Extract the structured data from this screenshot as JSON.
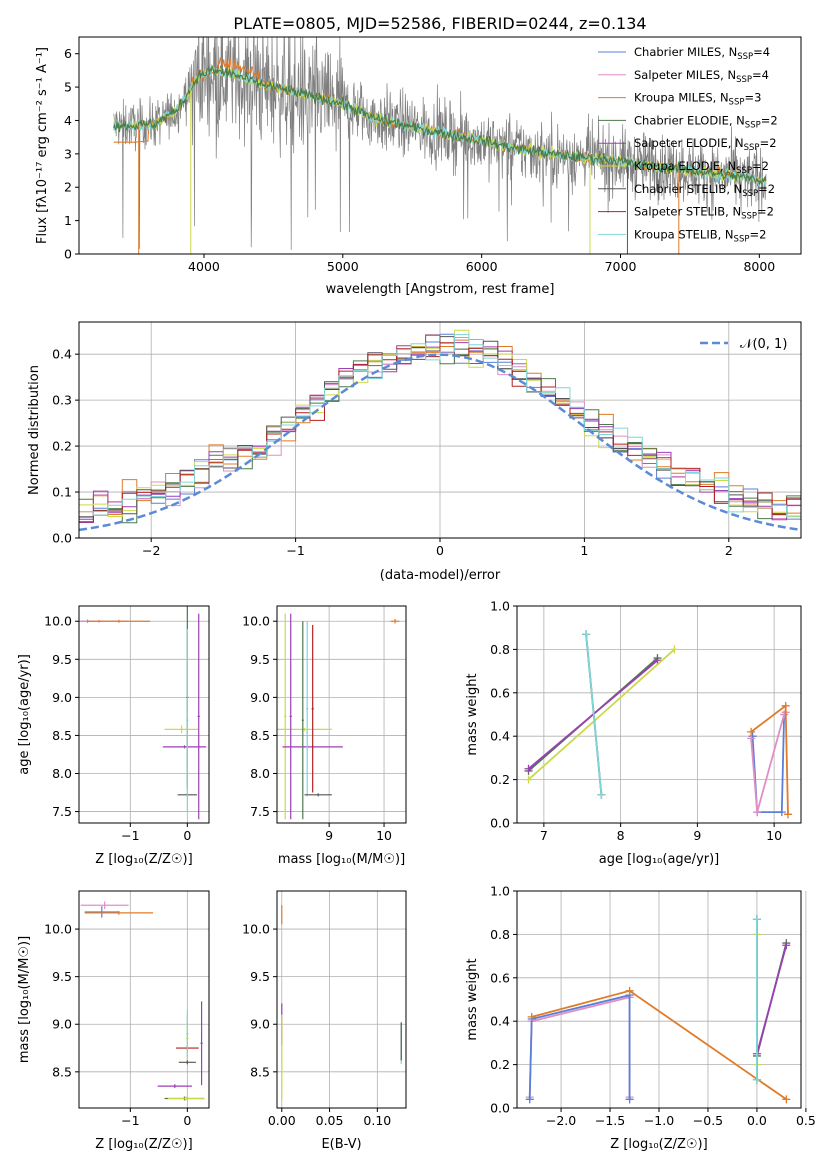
{
  "figure": {
    "title": "PLATE=0805, MJD=52586, FIBERID=0244, z=0.134"
  },
  "colors": {
    "Chabrier MILES": "#5b7fd6",
    "Salpeter MILES": "#e08fc6",
    "Kroupa MILES": "#e07b28",
    "Chabrier ELODIE": "#4c7a4c",
    "Salpeter ELODIE": "#9b3fb5",
    "Kroupa ELODIE": "#ccd94a",
    "Chabrier STELIB": "#555555",
    "Salpeter STELIB": "#b22222",
    "Kroupa STELIB": "#7fd6d6",
    "data": "#7f7f7f",
    "normal": "#5b8bd6"
  },
  "chart_data": [
    {
      "id": "spectrum",
      "type": "line",
      "xlabel": "wavelength [Angstrom, rest frame]",
      "ylabel": "Flux [fλ10⁻¹⁷ erg cm⁻² s⁻¹ A⁻¹]",
      "xlim": [
        3100,
        8300
      ],
      "ylim": [
        0,
        6.5
      ],
      "xticks": [
        4000,
        5000,
        6000,
        7000,
        8000
      ],
      "yticks": [
        0,
        1,
        2,
        3,
        4,
        5,
        6
      ],
      "legend": "top-right",
      "legend_entries": [
        {
          "name": "Chabrier MILES, N",
          "sub": "SSP",
          "tail": "=4",
          "color": "#5b7fd6"
        },
        {
          "name": "Salpeter MILES, N",
          "sub": "SSP",
          "tail": "=4",
          "color": "#e08fc6"
        },
        {
          "name": "Kroupa MILES, N",
          "sub": "SSP",
          "tail": "=3",
          "color": "#e07b28"
        },
        {
          "name": "Chabrier ELODIE, N",
          "sub": "SSP",
          "tail": "=2",
          "color": "#4c7a4c"
        },
        {
          "name": "Salpeter ELODIE, N",
          "sub": "SSP",
          "tail": "=2",
          "color": "#9b3fb5"
        },
        {
          "name": "Kroupa ELODIE, N",
          "sub": "SSP",
          "tail": "=2",
          "color": "#ccd94a"
        },
        {
          "name": "Chabrier STELIB, N",
          "sub": "SSP",
          "tail": "=2",
          "color": "#555555"
        },
        {
          "name": "Salpeter STELIB, N",
          "sub": "SSP",
          "tail": "=2",
          "color": "#b22222"
        },
        {
          "name": "Kroupa STELIB, N",
          "sub": "SSP",
          "tail": "=2",
          "color": "#7fd6d6"
        }
      ],
      "continuum": {
        "x": [
          3350,
          3500,
          3650,
          3800,
          3900,
          3950,
          4050,
          4200,
          4400,
          4600,
          4800,
          5000,
          5200,
          5500,
          5800,
          6000,
          6200,
          6500,
          6700,
          6900,
          7100,
          7400,
          7700,
          8050
        ],
        "y": [
          3.85,
          3.85,
          3.9,
          4.3,
          4.9,
          5.3,
          5.5,
          5.4,
          5.1,
          4.9,
          4.7,
          4.5,
          4.1,
          3.8,
          3.55,
          3.4,
          3.2,
          3.0,
          2.9,
          2.85,
          2.7,
          2.55,
          2.4,
          2.2
        ]
      }
    },
    {
      "id": "residuals",
      "type": "histogram",
      "xlabel": "(data-model)/error",
      "ylabel": "Normed distribution",
      "xlim": [
        -2.5,
        2.5
      ],
      "ylim": [
        0,
        0.47
      ],
      "xticks": [
        -2,
        -1,
        0,
        1,
        2
      ],
      "yticks": [
        0.0,
        0.1,
        0.2,
        0.3,
        0.4
      ],
      "grid": true,
      "legend": "top-right",
      "normal_label": "𝒩(0, 1)",
      "bin_width": 0.1
    },
    {
      "id": "age_vs_Z",
      "type": "scatter",
      "xlabel": "Z [log₁₀(Z/Z☉)]",
      "ylabel": "age  [log₁₀(age/yr)]",
      "xlim": [
        -1.9,
        0.38
      ],
      "ylim": [
        7.35,
        10.2
      ],
      "xticks": [
        -1,
        0
      ],
      "yticks": [
        7.5,
        8.0,
        8.5,
        9.0,
        9.5,
        10.0
      ],
      "grid": true,
      "points": [
        {
          "x": -1.75,
          "y": 10.0,
          "xerr": 0.12,
          "yerr": 0.02,
          "series": "Chabrier MILES"
        },
        {
          "x": -1.55,
          "y": 10.0,
          "xerr": 0.5,
          "yerr": 0.02,
          "series": "Salpeter MILES"
        },
        {
          "x": -1.2,
          "y": 10.0,
          "xerr": 0.55,
          "yerr": 0.02,
          "series": "Kroupa MILES"
        },
        {
          "x": 0.0,
          "y": 9.0,
          "xerr": 0.02,
          "yerr": 1.2,
          "series": "Chabrier ELODIE"
        },
        {
          "x": -0.1,
          "y": 8.58,
          "xerr": 0.3,
          "yerr": 0.05,
          "series": "Kroupa ELODIE"
        },
        {
          "x": 0.2,
          "y": 8.75,
          "xerr": 0.02,
          "yerr": 1.35,
          "series": "Salpeter ELODIE"
        },
        {
          "x": -0.05,
          "y": 8.35,
          "xerr": 0.38,
          "yerr": 0.02,
          "series": "Salpeter ELODIE"
        },
        {
          "x": 0.0,
          "y": 7.72,
          "xerr": 0.17,
          "yerr": 0.02,
          "series": "Chabrier STELIB"
        },
        {
          "x": 0.0,
          "y": 8.7,
          "xerr": 0.02,
          "yerr": 1.2,
          "series": "Kroupa STELIB"
        }
      ]
    },
    {
      "id": "age_vs_mass",
      "type": "scatter",
      "xlabel": "mass [log₁₀(M/M☉)]",
      "ylabel": "",
      "xlim": [
        8.05,
        10.4
      ],
      "ylim": [
        7.35,
        10.2
      ],
      "xticks": [
        9,
        10
      ],
      "yticks": [
        7.5,
        8.0,
        8.5,
        9.0,
        9.5,
        10.0
      ],
      "grid": true,
      "points": [
        {
          "x": 10.2,
          "y": 10.0,
          "xerr": 0.08,
          "yerr": 0.03,
          "series": "Kroupa MILES"
        },
        {
          "x": 8.55,
          "y": 8.58,
          "xerr": 0.5,
          "yerr": 0.02,
          "series": "Kroupa ELODIE"
        },
        {
          "x": 8.2,
          "y": 8.75,
          "xerr": 0.02,
          "yerr": 1.35,
          "series": "Kroupa ELODIE"
        },
        {
          "x": 8.3,
          "y": 8.75,
          "xerr": 0.02,
          "yerr": 1.35,
          "series": "Salpeter ELODIE"
        },
        {
          "x": 8.7,
          "y": 8.35,
          "xerr": 0.55,
          "yerr": 0.02,
          "series": "Salpeter ELODIE"
        },
        {
          "x": 8.52,
          "y": 8.7,
          "xerr": 0.02,
          "yerr": 1.3,
          "series": "Chabrier ELODIE"
        },
        {
          "x": 8.7,
          "y": 8.85,
          "xerr": 0.02,
          "yerr": 1.1,
          "series": "Salpeter STELIB"
        },
        {
          "x": 8.6,
          "y": 8.85,
          "xerr": 0.02,
          "yerr": 1.15,
          "series": "Kroupa STELIB"
        },
        {
          "x": 8.8,
          "y": 7.72,
          "xerr": 0.25,
          "yerr": 0.02,
          "series": "Chabrier STELIB"
        }
      ]
    },
    {
      "id": "weight_vs_age",
      "type": "line",
      "xlabel": "age  [log₁₀(age/yr)]",
      "ylabel": "mass weight",
      "xlim": [
        6.65,
        10.35
      ],
      "ylim": [
        0.0,
        1.0
      ],
      "xticks": [
        7,
        8,
        9,
        10
      ],
      "yticks": [
        0.0,
        0.2,
        0.4,
        0.6,
        0.8,
        1.0
      ],
      "grid": true,
      "series": [
        {
          "name": "Chabrier ELODIE",
          "x": [
            6.8,
            8.48
          ],
          "y": [
            0.24,
            0.76
          ]
        },
        {
          "name": "Salpeter ELODIE",
          "x": [
            6.8,
            8.48
          ],
          "y": [
            0.25,
            0.75
          ]
        },
        {
          "name": "Kroupa ELODIE",
          "x": [
            6.8,
            8.7
          ],
          "y": [
            0.2,
            0.8
          ]
        },
        {
          "name": "Chabrier STELIB",
          "x": [
            7.55,
            7.75
          ],
          "y": [
            0.87,
            0.13
          ]
        },
        {
          "name": "Kroupa STELIB",
          "x": [
            7.55,
            7.75
          ],
          "y": [
            0.87,
            0.13
          ]
        },
        {
          "name": "Chabrier MILES",
          "x": [
            9.72,
            9.78,
            10.1,
            10.13
          ],
          "y": [
            0.4,
            0.05,
            0.05,
            0.5
          ]
        },
        {
          "name": "Salpeter MILES",
          "x": [
            9.7,
            9.78,
            10.13,
            10.15
          ],
          "y": [
            0.39,
            0.05,
            0.5,
            0.51
          ]
        },
        {
          "name": "Kroupa MILES",
          "x": [
            9.7,
            10.15,
            10.18
          ],
          "y": [
            0.42,
            0.54,
            0.04
          ]
        }
      ]
    },
    {
      "id": "mass_vs_Z",
      "type": "scatter",
      "xlabel": "Z [log₁₀(Z/Z☉)]",
      "ylabel": "mass [log₁₀(M/M☉)]",
      "xlim": [
        -1.9,
        0.38
      ],
      "ylim": [
        8.12,
        10.4
      ],
      "xticks": [
        -1,
        0
      ],
      "yticks": [
        8.5,
        9.0,
        9.5,
        10.0
      ],
      "grid": true,
      "points": [
        {
          "x": -1.5,
          "y": 10.18,
          "xerr": 0.3,
          "yerr": 0.06,
          "series": "Chabrier MILES"
        },
        {
          "x": -1.45,
          "y": 10.25,
          "xerr": 0.42,
          "yerr": 0.04,
          "series": "Salpeter MILES"
        },
        {
          "x": -1.2,
          "y": 10.17,
          "xerr": 0.6,
          "yerr": 0.02,
          "series": "Kroupa MILES"
        },
        {
          "x": 0.0,
          "y": 8.85,
          "xerr": 0.02,
          "yerr": 0.25,
          "series": "Kroupa ELODIE"
        },
        {
          "x": -0.05,
          "y": 8.22,
          "xerr": 0.35,
          "yerr": 0.02,
          "series": "Chabrier ELODIE"
        },
        {
          "x": -0.02,
          "y": 8.22,
          "xerr": 0.32,
          "yerr": 0.02,
          "series": "Kroupa ELODIE"
        },
        {
          "x": -0.22,
          "y": 8.35,
          "xerr": 0.3,
          "yerr": 0.02,
          "series": "Salpeter ELODIE"
        },
        {
          "x": 0.25,
          "y": 8.8,
          "xerr": 0.02,
          "yerr": 0.44,
          "series": "Salpeter ELODIE"
        },
        {
          "x": 0.0,
          "y": 8.75,
          "xerr": 0.2,
          "yerr": 0.02,
          "series": "Salpeter STELIB"
        },
        {
          "x": 0.0,
          "y": 8.6,
          "xerr": 0.15,
          "yerr": 0.02,
          "series": "Chabrier STELIB"
        },
        {
          "x": 0.0,
          "y": 8.9,
          "xerr": 0.02,
          "yerr": 0.25,
          "series": "Kroupa STELIB"
        }
      ]
    },
    {
      "id": "mass_vs_ebv",
      "type": "scatter",
      "xlabel": "E(B-V)",
      "ylabel": "",
      "xlim": [
        -0.005,
        0.13
      ],
      "ylim": [
        8.12,
        10.4
      ],
      "xticks": [
        0.0,
        0.05,
        0.1
      ],
      "yticks": [
        8.5,
        9.0,
        9.5,
        10.0
      ],
      "grid": true,
      "points": [
        {
          "x": 0.0,
          "y": 10.15,
          "xerr": 0.0,
          "yerr": 0.1,
          "series": "Kroupa MILES"
        },
        {
          "x": 0.0,
          "y": 9.0,
          "xerr": 0.0,
          "yerr": 0.22,
          "series": "Salpeter ELODIE"
        },
        {
          "x": 0.0,
          "y": 8.65,
          "xerr": 0.0,
          "yerr": 0.45,
          "series": "Kroupa ELODIE"
        },
        {
          "x": 0.125,
          "y": 8.8,
          "xerr": 0.0,
          "yerr": 0.22,
          "series": "Kroupa STELIB"
        },
        {
          "x": 0.125,
          "y": 8.82,
          "xerr": 0.0,
          "yerr": 0.2,
          "series": "Chabrier STELIB"
        }
      ]
    },
    {
      "id": "weight_vs_Z",
      "type": "line",
      "xlabel": "Z [log₁₀(Z/Z☉)]",
      "ylabel": "mass weight",
      "xlim": [
        -2.45,
        0.45
      ],
      "ylim": [
        0.0,
        1.0
      ],
      "xticks": [
        -2.0,
        -1.5,
        -1.0,
        -0.5,
        0.0,
        0.5
      ],
      "yticks": [
        0.0,
        0.2,
        0.4,
        0.6,
        0.8,
        1.0
      ],
      "grid": true,
      "series": [
        {
          "name": "Salpeter MILES",
          "x": [
            -2.32,
            -2.3,
            -1.3,
            -1.3
          ],
          "y": [
            0.05,
            0.4,
            0.51,
            0.05
          ]
        },
        {
          "name": "Chabrier MILES",
          "x": [
            -2.32,
            -2.3,
            -1.3,
            -1.3
          ],
          "y": [
            0.04,
            0.41,
            0.52,
            0.04
          ]
        },
        {
          "name": "Kroupa MILES",
          "x": [
            -2.3,
            -1.3,
            0.3
          ],
          "y": [
            0.42,
            0.54,
            0.04
          ]
        },
        {
          "name": "Chabrier ELODIE",
          "x": [
            0.0,
            0.3
          ],
          "y": [
            0.24,
            0.76
          ]
        },
        {
          "name": "Salpeter ELODIE",
          "x": [
            0.0,
            0.3
          ],
          "y": [
            0.25,
            0.75
          ]
        },
        {
          "name": "Kroupa ELODIE",
          "x": [
            0.0,
            0.0
          ],
          "y": [
            0.2,
            0.8
          ]
        },
        {
          "name": "Chabrier STELIB",
          "x": [
            0.0,
            0.0
          ],
          "y": [
            0.13,
            0.87
          ]
        },
        {
          "name": "Kroupa STELIB",
          "x": [
            0.0,
            0.0
          ],
          "y": [
            0.13,
            0.87
          ]
        }
      ]
    }
  ]
}
